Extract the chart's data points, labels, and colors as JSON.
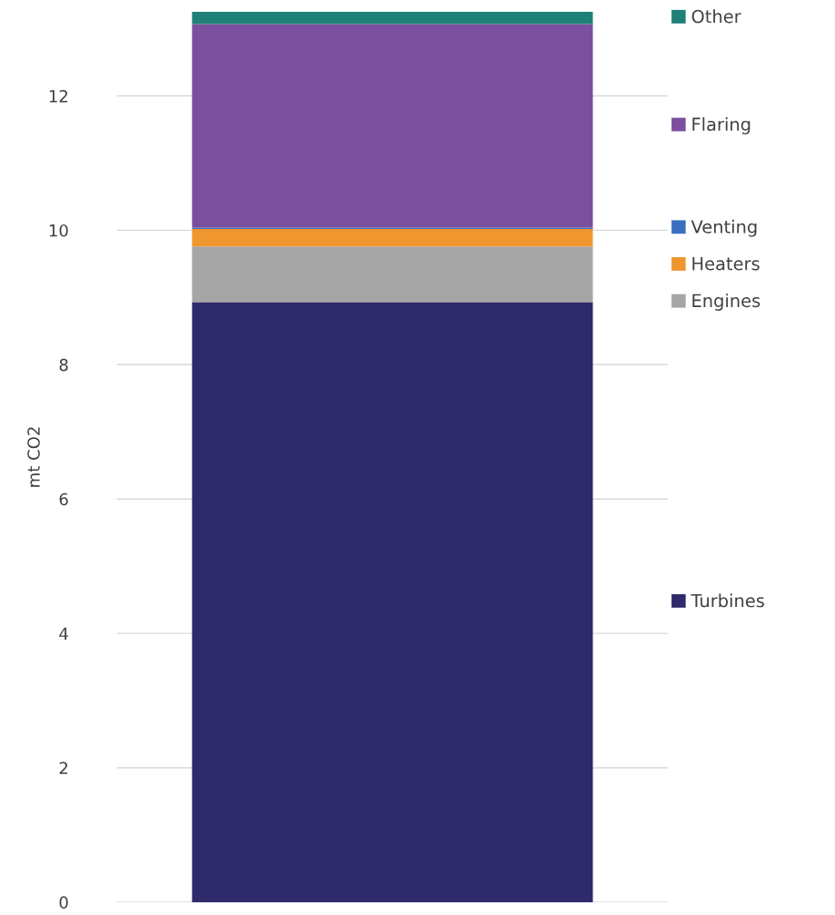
{
  "chart_data": {
    "type": "bar",
    "stacked": true,
    "ylabel": "mt CO2",
    "categories": [
      null
    ],
    "series": [
      {
        "name": "Turbines",
        "color": "#2e2a6b",
        "values": [
          8.93
        ]
      },
      {
        "name": "Engines",
        "color": "#a5a5a5",
        "values": [
          0.83
        ]
      },
      {
        "name": "Heaters",
        "color": "#f0962e",
        "values": [
          0.26
        ]
      },
      {
        "name": "Venting",
        "color": "#3a6fc0",
        "values": [
          0.02
        ]
      },
      {
        "name": "Flaring",
        "color": "#7b4e9e",
        "values": [
          3.03
        ]
      },
      {
        "name": "Other",
        "color": "#1f8077",
        "values": [
          0.18
        ]
      }
    ],
    "ylim": [
      0,
      13.25
    ],
    "yticks": [
      0,
      2,
      4,
      6,
      8,
      10,
      12
    ],
    "grid": "y",
    "legend": "right"
  }
}
